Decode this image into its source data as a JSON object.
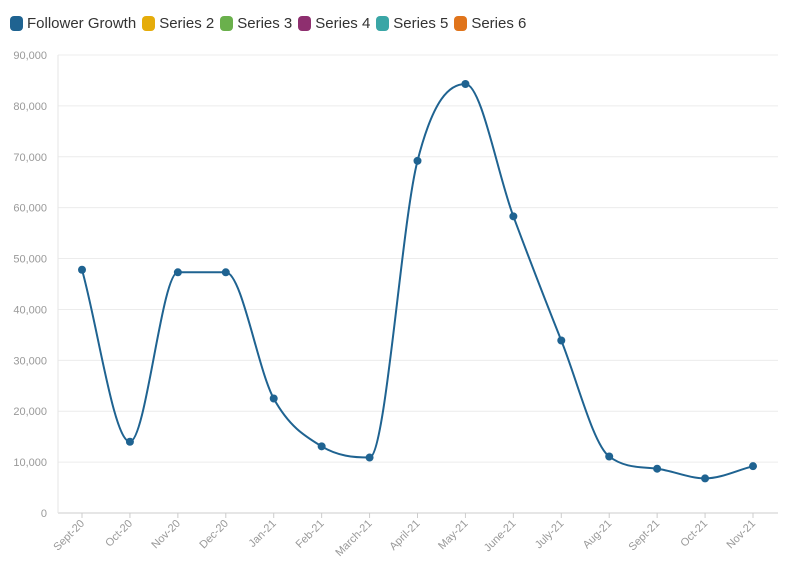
{
  "chart_data": {
    "type": "line",
    "categories": [
      "Sept-20",
      "Oct-20",
      "Nov-20",
      "Dec-20",
      "Jan-21",
      "Feb-21",
      "March-21",
      "April-21",
      "May-21",
      "June-21",
      "July-21",
      "Aug-21",
      "Sept-21",
      "Oct-21",
      "Nov-21"
    ],
    "series": [
      {
        "name": "Follower Growth",
        "color": "#1f6391",
        "values": [
          47800,
          14000,
          47300,
          47300,
          22500,
          13100,
          10900,
          69200,
          84300,
          58300,
          33900,
          11100,
          8700,
          6800,
          9200
        ]
      }
    ],
    "legend": [
      {
        "name": "Follower Growth",
        "color": "#1f6391"
      },
      {
        "name": "Series 2",
        "color": "#e5ac0a"
      },
      {
        "name": "Series 3",
        "color": "#6ab04c"
      },
      {
        "name": "Series 4",
        "color": "#8e2f6f"
      },
      {
        "name": "Series 5",
        "color": "#3aa6a6"
      },
      {
        "name": "Series 6",
        "color": "#e0741b"
      }
    ],
    "legend_position": "top-left",
    "ylim": [
      0,
      90000
    ],
    "yticks": [
      0,
      10000,
      20000,
      30000,
      40000,
      50000,
      60000,
      70000,
      80000,
      90000
    ],
    "ytick_labels": [
      "0",
      "10,000",
      "20,000",
      "30,000",
      "40,000",
      "50,000",
      "60,000",
      "70,000",
      "80,000",
      "90,000"
    ],
    "grid": true,
    "title": "",
    "xlabel": "",
    "ylabel": ""
  }
}
